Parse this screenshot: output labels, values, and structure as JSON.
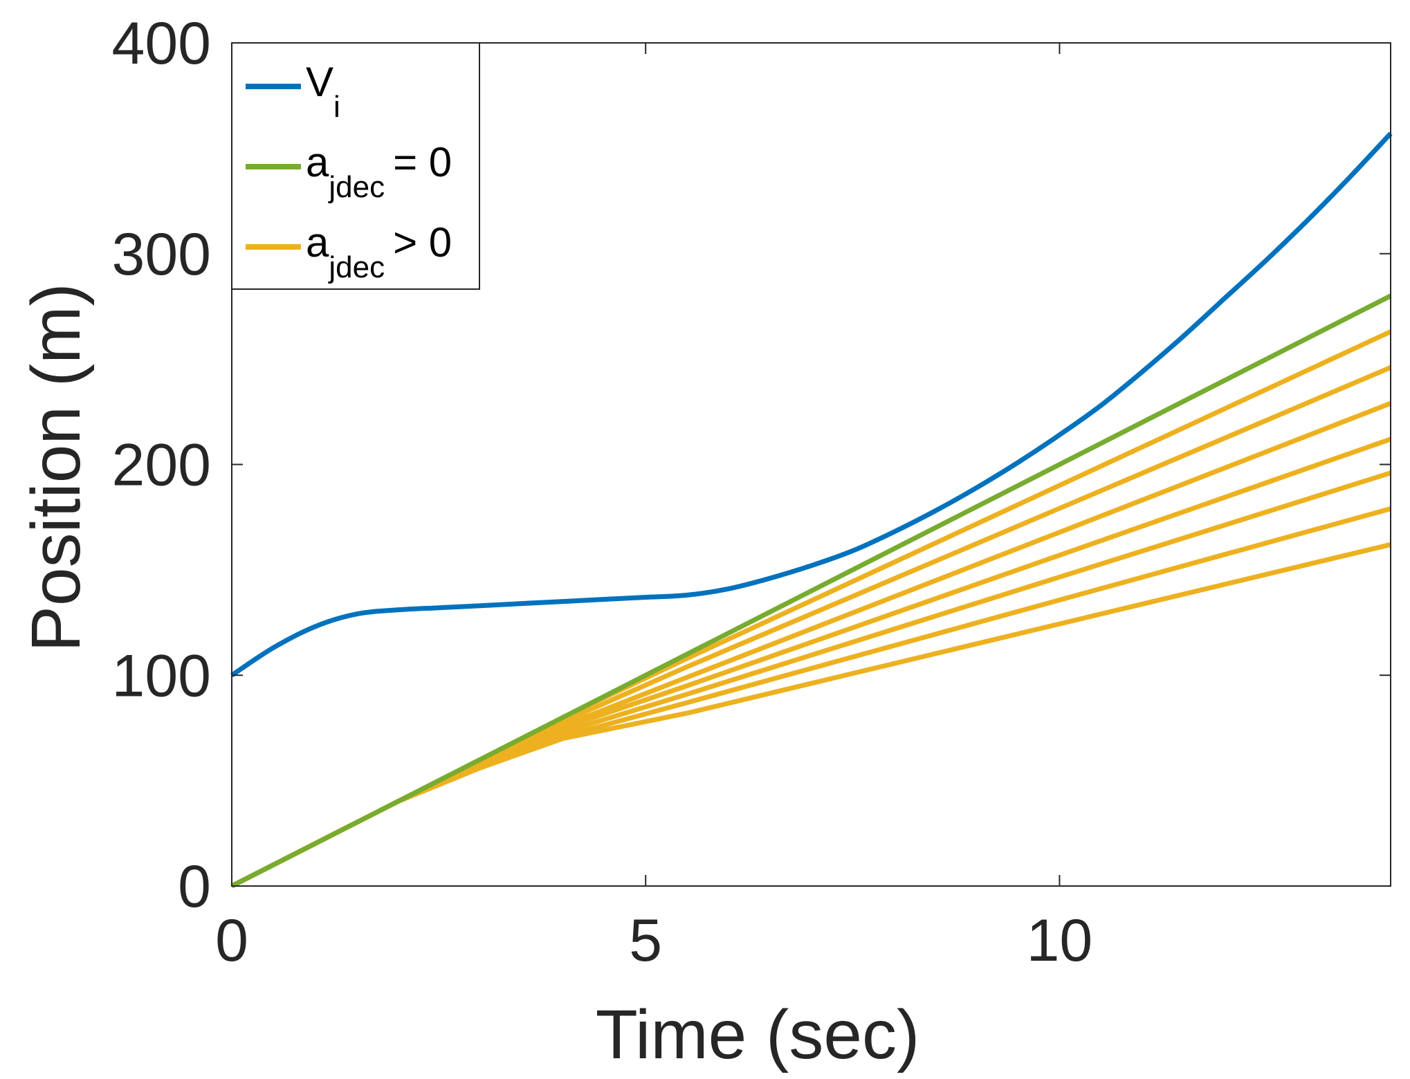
{
  "chart_data": {
    "type": "line",
    "title": "",
    "xlabel": "Time (sec)",
    "ylabel": "Position (m)",
    "xlim": [
      0,
      14
    ],
    "ylim": [
      0,
      400
    ],
    "xticks": [
      0,
      5,
      10
    ],
    "yticks": [
      0,
      100,
      200,
      300,
      400
    ],
    "xtick_labels": [
      "0",
      "5",
      "10"
    ],
    "ytick_labels": [
      "0",
      "100",
      "200",
      "300",
      "400"
    ],
    "grid": false,
    "legend": {
      "location": "top-left",
      "entries": [
        {
          "main": "V",
          "sub": "i",
          "tail": "",
          "color": "#0072BD"
        },
        {
          "main": "a",
          "sub": "jdec",
          "tail": "= 0",
          "color": "#77AC30"
        },
        {
          "main": "a",
          "sub": "jdec",
          "tail": "> 0",
          "color": "#EDB120"
        }
      ]
    },
    "colors": {
      "vi": "#0072BD",
      "zero": "#77AC30",
      "positive": "#EDB120",
      "axis": "#262626"
    },
    "series": [
      {
        "name": "V_i",
        "color": "#0072BD",
        "x": [
          0,
          0.5,
          1,
          1.5,
          2,
          2.5,
          3,
          3.5,
          4,
          4.5,
          5,
          5.5,
          6,
          6.5,
          7,
          7.5,
          8,
          8.5,
          9,
          9.5,
          10,
          10.5,
          11,
          11.5,
          12,
          12.5,
          13,
          13.5,
          14
        ],
        "y": [
          100,
          113,
          123,
          129,
          131,
          132,
          133,
          134,
          135,
          136,
          137,
          138,
          141,
          146,
          152,
          159,
          168,
          178,
          189,
          201,
          214,
          228,
          244,
          261,
          279,
          297,
          316,
          336,
          357
        ]
      },
      {
        "name": "a_jdec = 0",
        "color": "#77AC30",
        "x": [
          0,
          5,
          14
        ],
        "y": [
          0,
          100,
          280
        ]
      },
      {
        "name": "a_jdec > 0 (1)",
        "color": "#EDB120",
        "x": [
          0,
          2,
          3,
          4,
          5.5,
          14
        ],
        "y": [
          0,
          40,
          60,
          80,
          108,
          263
        ]
      },
      {
        "name": "a_jdec > 0 (2)",
        "color": "#EDB120",
        "x": [
          0,
          2,
          3,
          4,
          5.5,
          14
        ],
        "y": [
          0,
          40,
          59,
          78,
          104,
          246
        ]
      },
      {
        "name": "a_jdec > 0 (3)",
        "color": "#EDB120",
        "x": [
          0,
          2,
          3,
          4,
          5.5,
          14
        ],
        "y": [
          0,
          40,
          58,
          76,
          99,
          229
        ]
      },
      {
        "name": "a_jdec > 0 (4)",
        "color": "#EDB120",
        "x": [
          0,
          2,
          3,
          4,
          5.5,
          14
        ],
        "y": [
          0,
          40,
          58,
          75,
          95,
          212
        ]
      },
      {
        "name": "a_jdec > 0 (5)",
        "color": "#EDB120",
        "x": [
          0,
          2,
          3,
          4,
          5.5,
          14
        ],
        "y": [
          0,
          40,
          57,
          73,
          91,
          196
        ]
      },
      {
        "name": "a_jdec > 0 (6)",
        "color": "#EDB120",
        "x": [
          0,
          2,
          3,
          4,
          5.5,
          14
        ],
        "y": [
          0,
          40,
          57,
          71,
          87,
          179
        ]
      },
      {
        "name": "a_jdec > 0 (7)",
        "color": "#EDB120",
        "x": [
          0,
          2,
          3,
          4,
          5.5,
          14
        ],
        "y": [
          0,
          40,
          56,
          70,
          82,
          162
        ]
      }
    ]
  }
}
